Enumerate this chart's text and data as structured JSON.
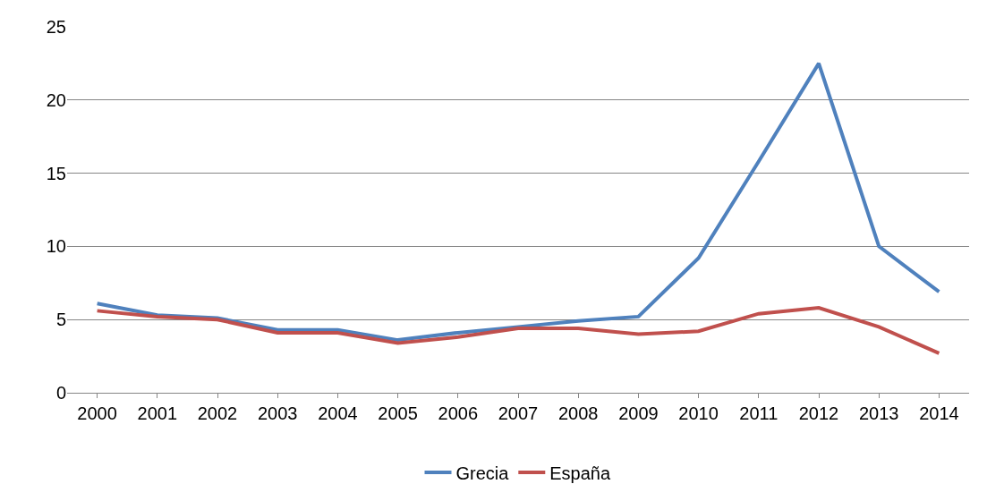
{
  "chart_data": {
    "type": "line",
    "categories": [
      "2000",
      "2001",
      "2002",
      "2003",
      "2004",
      "2005",
      "2006",
      "2007",
      "2008",
      "2009",
      "2010",
      "2011",
      "2012",
      "2013",
      "2014"
    ],
    "series": [
      {
        "name": "Grecia",
        "color": "#4f81bd",
        "values": [
          6.1,
          5.3,
          5.1,
          4.3,
          4.3,
          3.6,
          4.1,
          4.5,
          4.9,
          5.2,
          9.2,
          15.8,
          22.5,
          10.0,
          6.9
        ]
      },
      {
        "name": "España",
        "color": "#c0504d",
        "values": [
          5.6,
          5.2,
          5.0,
          4.1,
          4.1,
          3.4,
          3.8,
          4.4,
          4.4,
          4.0,
          4.2,
          5.4,
          5.8,
          4.5,
          2.7
        ]
      }
    ],
    "ylim": [
      0,
      25
    ],
    "yticks": [
      0,
      5,
      10,
      15,
      20,
      25
    ],
    "grid": "y",
    "legend": "bottom",
    "marker": "none",
    "line_style": "solid"
  }
}
